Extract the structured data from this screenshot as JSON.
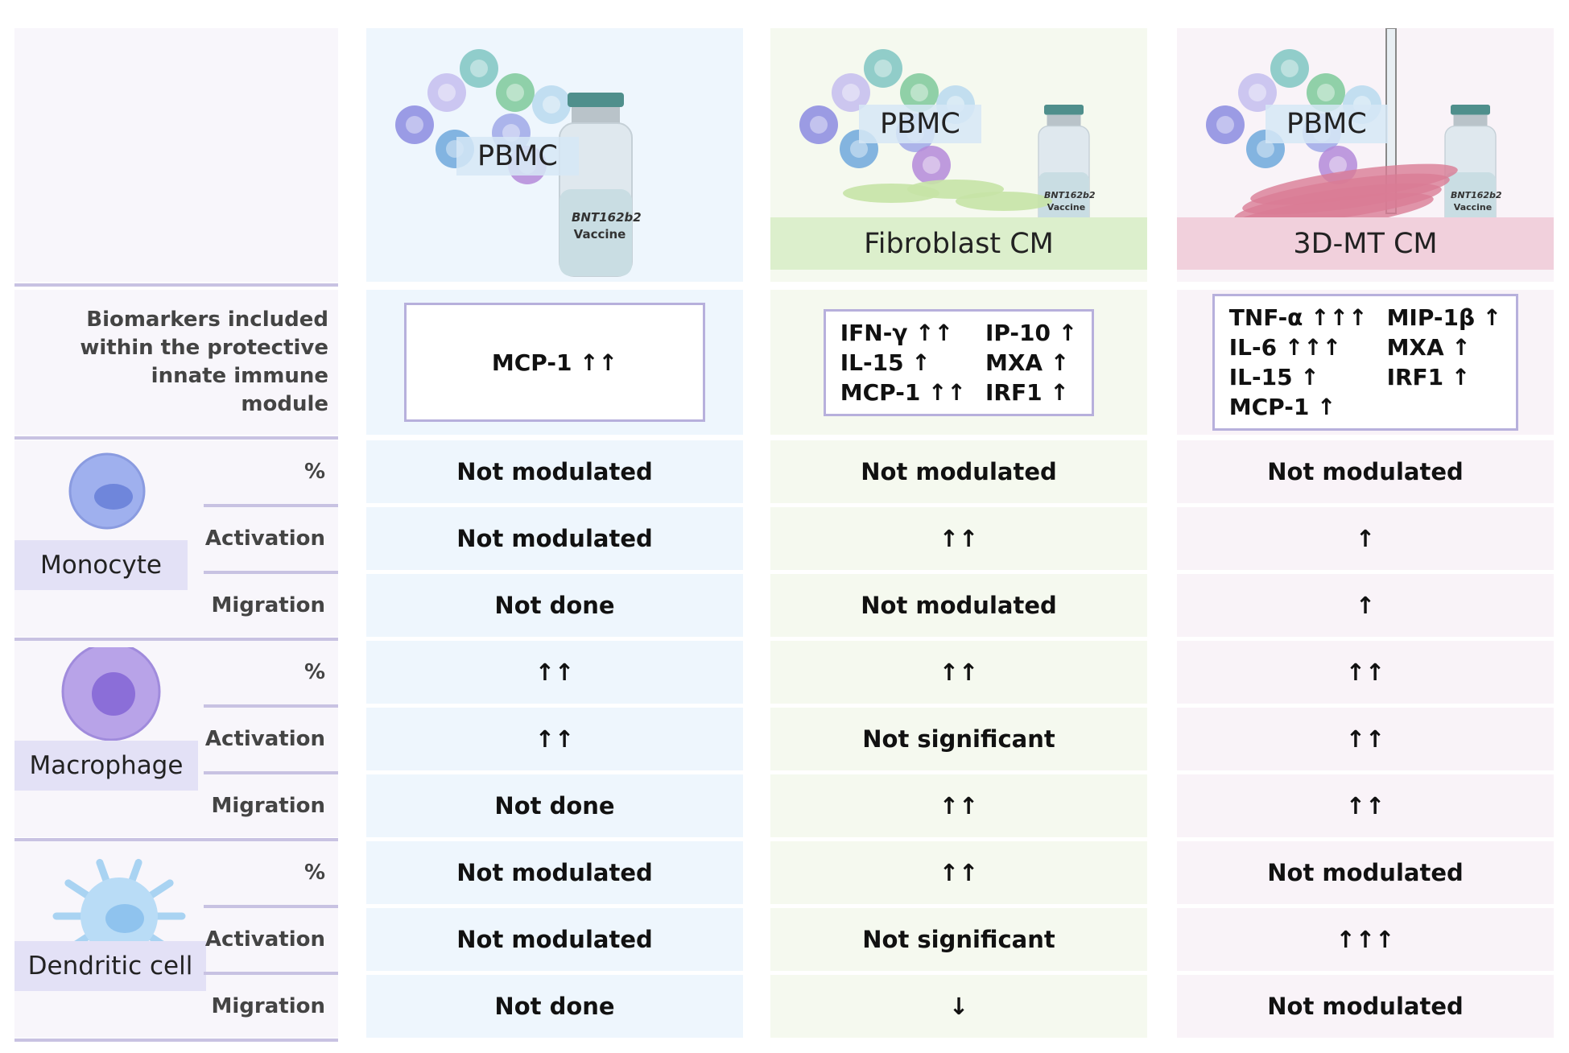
{
  "columns": [
    {
      "pbmc": "PBMC",
      "vial": "BNT162b2",
      "vial_sub": "Vaccine"
    },
    {
      "pbmc": "PBMC",
      "vial": "BNT162b2",
      "vial_sub": "Vaccine",
      "condition": "Fibroblast CM"
    },
    {
      "pbmc": "PBMC",
      "vial": "BNT162b2",
      "vial_sub": "Vaccine",
      "condition": "3D-MT CM"
    }
  ],
  "biomarkers": {
    "label": "Biomarkers included within the protective innate immune module",
    "cells": [
      [
        "MCP-1 ↑↑"
      ],
      [
        "IFN-γ ↑↑",
        "IP-10 ↑",
        "IL-15 ↑",
        "MXA ↑",
        "MCP-1 ↑↑",
        "IRF1 ↑"
      ],
      [
        "TNF-α ↑↑↑",
        "MIP-1β ↑",
        "IL-6 ↑↑↑",
        "MXA ↑",
        "IL-15 ↑",
        "IRF1 ↑",
        "MCP-1 ↑"
      ]
    ]
  },
  "groups": [
    {
      "cell": "Monocyte",
      "rows": [
        {
          "measure": "%",
          "values": [
            "Not modulated",
            "Not modulated",
            "Not modulated"
          ]
        },
        {
          "measure": "Activation",
          "values": [
            "Not modulated",
            "↑↑",
            "↑"
          ]
        },
        {
          "measure": "Migration",
          "values": [
            "Not done",
            "Not modulated",
            "↑"
          ]
        }
      ]
    },
    {
      "cell": "Macrophage",
      "rows": [
        {
          "measure": "%",
          "values": [
            "↑↑",
            "↑↑",
            "↑↑"
          ]
        },
        {
          "measure": "Activation",
          "values": [
            "↑↑",
            "Not significant",
            "↑↑"
          ]
        },
        {
          "measure": "Migration",
          "values": [
            "Not done",
            "↑↑",
            "↑↑"
          ]
        }
      ]
    },
    {
      "cell": "Dendritic cell",
      "rows": [
        {
          "measure": "%",
          "values": [
            "Not modulated",
            "↑↑",
            "Not modulated"
          ]
        },
        {
          "measure": "Activation",
          "values": [
            "Not modulated",
            "Not significant",
            "↑↑↑"
          ]
        },
        {
          "measure": "Migration",
          "values": [
            "Not done",
            "↓",
            "Not modulated"
          ]
        }
      ]
    }
  ]
}
